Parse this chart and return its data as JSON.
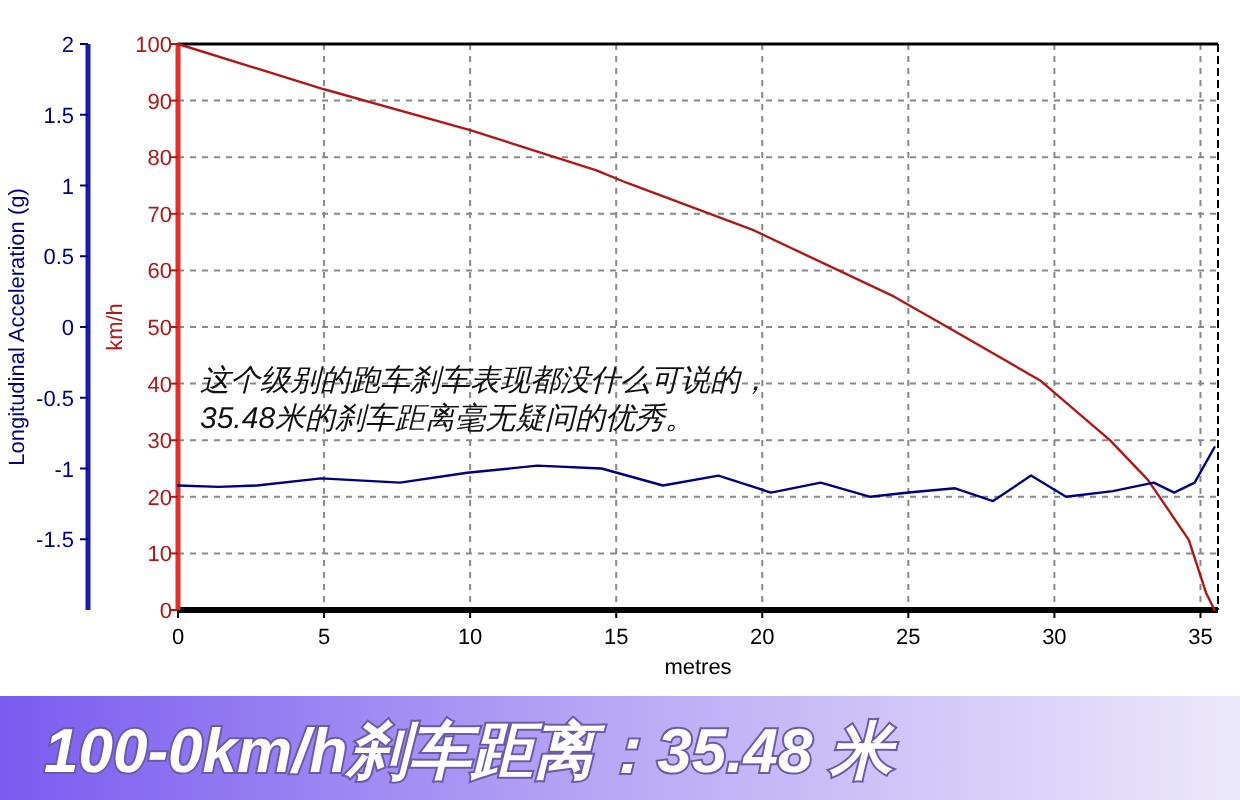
{
  "chart_data": {
    "type": "line",
    "title": "100-0km/h刹车距离：35.48 米",
    "xlabel": "metres",
    "ylabel": "km/h",
    "y2label": "Longitudinal Acceleration (g)",
    "annotations": [
      "这个级别的跑车刹车表现都没什么可说的，\n35.48米的刹车距离毫无疑问的优秀。"
    ],
    "series": [
      {
        "color": "#b01818",
        "x": [
          0,
          5,
          10,
          14.3,
          15.4,
          19.7,
          24.5,
          26.5,
          29.5,
          31.9,
          33.2,
          34.6,
          35.2,
          35.48
        ],
        "values": [
          100,
          92,
          84.8,
          77.7,
          75.4,
          67.1,
          55.4,
          49.5,
          40.6,
          30,
          23,
          12.4,
          2.9,
          0
        ]
      },
      {
        "color": "#000080",
        "axis": "y2",
        "x": [
          0,
          1.4,
          2.7,
          4.9,
          7.6,
          9.9,
          12.3,
          14.5,
          16.6,
          18.5,
          20.3,
          22,
          23.7,
          25,
          26.6,
          27.9,
          29.2,
          30.4,
          32,
          33.4,
          34.1,
          34.8,
          35.48
        ],
        "values": [
          -1.12,
          -1.13,
          -1.12,
          -1.07,
          -1.1,
          -1.03,
          -0.98,
          -1,
          -1.12,
          -1.05,
          -1.17,
          -1.1,
          -1.2,
          -1.17,
          -1.14,
          -1.23,
          -1.05,
          -1.2,
          -1.16,
          -1.1,
          -1.17,
          -1.1,
          -0.85
        ]
      }
    ],
    "xlim": [
      0,
      35.6
    ],
    "xticks": [
      0,
      5,
      10,
      15,
      20,
      25,
      30,
      35
    ],
    "ylim": [
      0,
      100
    ],
    "yticks": [
      0,
      10,
      20,
      30,
      40,
      50,
      60,
      70,
      80,
      90,
      100
    ],
    "y2lim": [
      -2,
      2
    ],
    "y2ticks": [
      -1.5,
      -1,
      -0.5,
      0,
      0.5,
      1,
      1.5,
      2
    ],
    "grid": true,
    "marker": "none",
    "line_style": "solid"
  }
}
